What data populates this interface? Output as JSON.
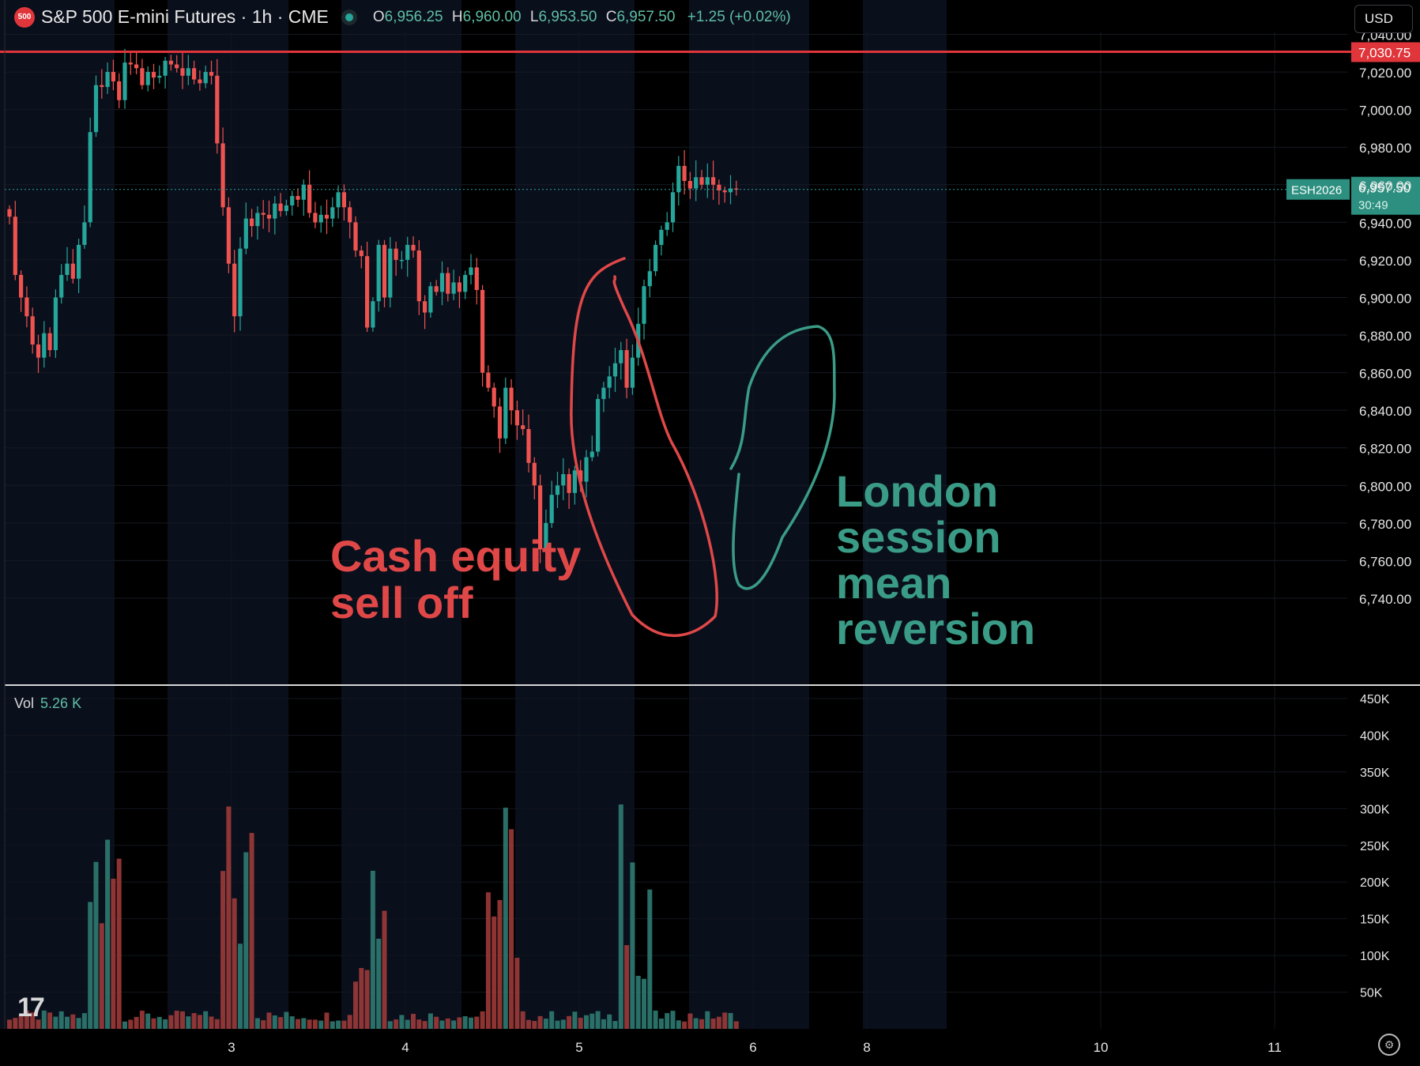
{
  "header": {
    "symbol_logo": "500",
    "title": "S&P 500 E-mini Futures · 1h · CME",
    "ohlc": {
      "o_label": "O",
      "o_value": "6,956.25",
      "h_label": "H",
      "h_value": "6,960.00",
      "l_label": "L",
      "l_value": "6,953.50",
      "c_label": "C",
      "c_value": "6,957.50",
      "change": "+1.25 (+0.02%)"
    }
  },
  "currency_selector": {
    "label": "USD"
  },
  "volume_legend": {
    "label": "Vol",
    "value": "5.26 K"
  },
  "colors": {
    "up": "#26a69a",
    "down": "#ef5350",
    "session_band": "#0a0f1c",
    "resistance": "#e0363b",
    "annotation_red": "#e04848",
    "annotation_green": "#3a9c86"
  },
  "icons": {
    "logo": "tradingview-logo-icon",
    "settings": "gear-icon"
  },
  "chart_data": [
    {
      "type": "candlestick",
      "symbol": "ESH2026",
      "interval": "1h",
      "ylim": [
        6730,
        7045
      ],
      "y_ticks": [
        "6,740.00",
        "6,760.00",
        "6,780.00",
        "6,800.00",
        "6,820.00",
        "6,840.00",
        "6,860.00",
        "6,880.00",
        "6,900.00",
        "6,920.00",
        "6,940.00",
        "6,960.00",
        "6,980.00",
        "7,000.00",
        "7,020.00",
        "7,040.00"
      ],
      "x_ticks": [
        "3",
        "4",
        "5",
        "6",
        "8",
        "10",
        "11"
      ],
      "last_price": {
        "value": 6957.5,
        "label": "6,957.50",
        "countdown": "30:49",
        "symbol_tag": "ESH2026"
      },
      "horizontal_line": {
        "value": 7030.75,
        "label": "7,030.75"
      },
      "series": [
        {
          "name": "",
          "closes": [
            6943,
            6912,
            6900,
            6890,
            6875,
            6868,
            6881,
            6872,
            6900,
            6912,
            6918,
            6910,
            6928,
            6940,
            6988,
            7013,
            7012,
            7020,
            7015,
            7005,
            7025,
            7024,
            7022,
            7013,
            7020,
            7017,
            7018,
            7026,
            7024,
            7022,
            7018,
            7022,
            7016,
            7014,
            7020,
            7018,
            6982,
            6948,
            6918,
            6890,
            6926,
            6942,
            6938,
            6945,
            6944,
            6942,
            6950,
            6946,
            6949,
            6954,
            6952,
            6960,
            6945,
            6940,
            6944,
            6942,
            6948,
            6956,
            6948,
            6940,
            6925,
            6922,
            6884,
            6898,
            6928,
            6900,
            6926,
            6920,
            6920,
            6928,
            6925,
            6898,
            6892,
            6906,
            6903,
            6913,
            6902,
            6908,
            6903,
            6912,
            6916,
            6904,
            6860,
            6852,
            6842,
            6825,
            6852,
            6840,
            6832,
            6830,
            6812,
            6800,
            6766,
            6780,
            6795,
            6800,
            6806,
            6796,
            6808,
            6802,
            6815,
            6818,
            6846,
            6852,
            6858,
            6865,
            6872,
            6852,
            6868,
            6886,
            6906,
            6914,
            6928,
            6936,
            6940,
            6956,
            6970,
            6962,
            6958,
            6964,
            6960,
            6964,
            6960,
            6957,
            6956,
            6958,
            6957.5
          ],
          "total_bars": 127,
          "ranges": [
            {
              "from": 6943,
              "to": 6912,
              "low": 6893,
              "high": 6966
            },
            {
              "from": 6900,
              "to": 6868,
              "low": 6862,
              "high": 6905
            },
            {
              "from": 6868,
              "to": 6930,
              "low": 6862,
              "high": 6945
            },
            {
              "from": 6930,
              "to": 7015,
              "low": 6925,
              "high": 7018
            },
            {
              "from": 7005,
              "to": 7025,
              "low": 6998,
              "high": 7028
            },
            {
              "from": 7018,
              "to": 7013,
              "low": 7008,
              "high": 7024
            },
            {
              "from": 7018,
              "to": 6944,
              "low": 6940,
              "high": 7022
            },
            {
              "from": 6944,
              "to": 6890,
              "low": 6886,
              "high": 6950
            },
            {
              "from": 6890,
              "to": 6945,
              "low": 6886,
              "high": 6950
            },
            {
              "from": 6945,
              "to": 6952,
              "low": 6938,
              "high": 6963
            },
            {
              "from": 6952,
              "to": 6920,
              "low": 6915,
              "high": 6963
            },
            {
              "from": 6920,
              "to": 6880,
              "low": 6862,
              "high": 6932
            },
            {
              "from": 6880,
              "to": 6928,
              "low": 6876,
              "high": 6942
            },
            {
              "from": 6928,
              "to": 6892,
              "low": 6888,
              "high": 6935
            },
            {
              "from": 6892,
              "to": 6916,
              "low": 6886,
              "high": 6920
            },
            {
              "from": 6916,
              "to": 6860,
              "low": 6850,
              "high": 6920
            },
            {
              "from": 6860,
              "to": 6826,
              "low": 6818,
              "high": 6862
            },
            {
              "from": 6826,
              "to": 6810,
              "low": 6796,
              "high": 6830
            },
            {
              "from": 6810,
              "to": 6766,
              "low": 6754,
              "high": 6812
            },
            {
              "from": 6766,
              "to": 6810,
              "low": 6760,
              "high": 6812
            },
            {
              "from": 6810,
              "to": 6856,
              "low": 6790,
              "high": 6858
            },
            {
              "from": 6856,
              "to": 6872,
              "low": 6850,
              "high": 6878
            },
            {
              "from": 6872,
              "to": 6934,
              "low": 6866,
              "high": 6936
            },
            {
              "from": 6934,
              "to": 6970,
              "low": 6928,
              "high": 6980
            },
            {
              "from": 6970,
              "to": 6957,
              "low": 6947,
              "high": 6968
            }
          ]
        }
      ],
      "session_bands_day_index": [
        "1.7-2.0",
        "2.9-3.3",
        "3.7-4.4",
        "4.9-5.4",
        "5.9-6.3",
        "6.6-6.98",
        "7.3-8.5"
      ],
      "annotations": [
        {
          "text_line1": "Cash equity",
          "text_line2": "sell off",
          "color": "#e04848"
        },
        {
          "text_line1": "London",
          "text_line2": "session",
          "text_line3": "mean",
          "text_line4": "reversion",
          "color": "#3a9c86"
        }
      ]
    },
    {
      "type": "bar",
      "name": "Vol",
      "ylim": [
        0,
        450000
      ],
      "y_ticks": [
        "50K",
        "100K",
        "150K",
        "200K",
        "250K",
        "300K",
        "350K",
        "400K",
        "450K"
      ],
      "last_value": "5.26 K"
    }
  ]
}
